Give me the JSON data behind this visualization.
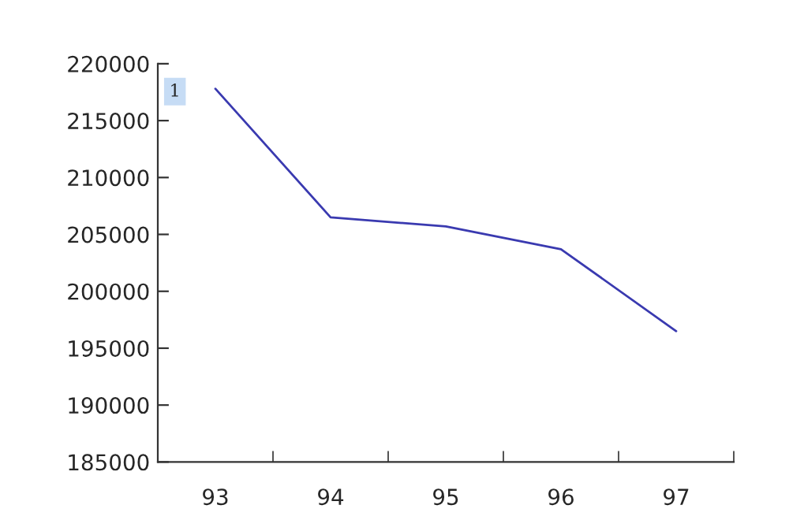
{
  "chart_data": {
    "type": "line",
    "categories": [
      "93",
      "94",
      "95",
      "96",
      "97"
    ],
    "series": [
      {
        "color": "#3a3ab0",
        "values": [
          217800,
          206500,
          205700,
          203700,
          196500
        ]
      }
    ],
    "ylim": [
      185000,
      220000
    ],
    "yticks": [
      185000,
      190000,
      195000,
      200000,
      205000,
      210000,
      215000,
      220000
    ],
    "annotations": [
      "1"
    ],
    "grid": false,
    "marker": "none",
    "line_style": "solid"
  }
}
